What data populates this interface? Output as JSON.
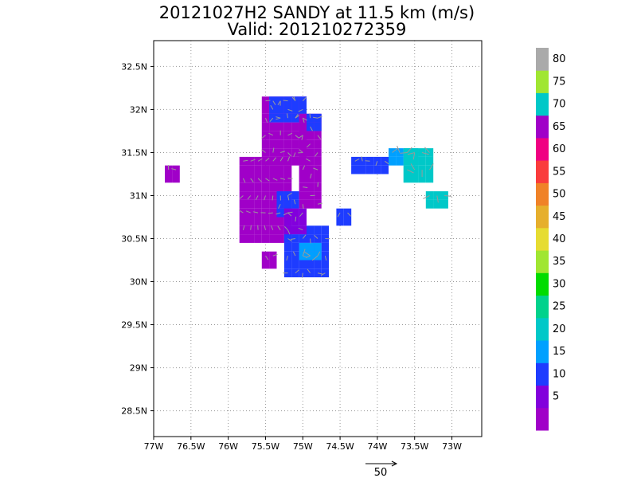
{
  "chart_data": {
    "type": "heatmap",
    "title": "20121027H2 SANDY at 11.5 km (m/s)",
    "subtitle": "Valid: 201210272359",
    "xlim": [
      -77.0,
      -72.6
    ],
    "ylim": [
      28.2,
      32.8
    ],
    "x_ticks": [
      -77,
      -76.5,
      -76,
      -75.5,
      -75,
      -74.5,
      -74,
      -73.5,
      -73
    ],
    "x_tick_labels": [
      "77W",
      "76.5W",
      "76W",
      "75.5W",
      "75W",
      "74.5W",
      "74W",
      "73.5W",
      "73W"
    ],
    "y_ticks": [
      28.5,
      29,
      29.5,
      30,
      30.5,
      31,
      31.5,
      32,
      32.5
    ],
    "y_tick_labels": [
      "28.5N",
      "29N",
      "29.5N",
      "30N",
      "30.5N",
      "31N",
      "31.5N",
      "32N",
      "32.5N"
    ],
    "grid": true,
    "colorbar": {
      "levels": [
        "5",
        "10",
        "15",
        "20",
        "25",
        "30",
        "35",
        "40",
        "45",
        "50",
        "55",
        "60",
        "65",
        "70",
        "75",
        "80"
      ],
      "colors": [
        "#a000c8",
        "#8200dc",
        "#1e3cff",
        "#00a0ff",
        "#00c8c8",
        "#00d28c",
        "#00dc00",
        "#a0e632",
        "#e6dc32",
        "#e6af2d",
        "#f08228",
        "#fa3c3c",
        "#f00082",
        "#a000c8",
        "#00c8c8",
        "#a0e632",
        "#aaaaaa"
      ]
    },
    "reference_vector": {
      "label": "50",
      "value": 50
    },
    "cell_size_deg": 0.1,
    "clusters": [
      {
        "region": "main-west",
        "lon": [
          -75.8,
          -75.2
        ],
        "lat": [
          30.5,
          31.4
        ],
        "level": 0
      },
      {
        "region": "north-arm",
        "lon": [
          -75.5,
          -75.0
        ],
        "lat": [
          31.4,
          32.1
        ],
        "level": 0
      },
      {
        "region": "north-tip",
        "lon": [
          -75.4,
          -75.0
        ],
        "lat": [
          31.9,
          32.1
        ],
        "level": 2
      },
      {
        "region": "east-arm",
        "lon": [
          -75.0,
          -74.8
        ],
        "lat": [
          30.9,
          31.9
        ],
        "level": 0
      },
      {
        "region": "east-top",
        "lon": [
          -74.9,
          -74.8
        ],
        "lat": [
          31.8,
          31.9
        ],
        "level": 2
      },
      {
        "region": "center-band",
        "lon": [
          -75.3,
          -75.1
        ],
        "lat": [
          30.8,
          31.0
        ],
        "level": 2
      },
      {
        "region": "south-core",
        "lon": [
          -75.2,
          -74.7
        ],
        "lat": [
          30.1,
          30.6
        ],
        "level": 2
      },
      {
        "region": "south-mid",
        "lon": [
          -75.0,
          -74.8
        ],
        "lat": [
          30.3,
          30.4
        ],
        "level": 3
      },
      {
        "region": "south-mix",
        "lon": [
          -75.2,
          -75.0
        ],
        "lat": [
          30.6,
          30.8
        ],
        "level": 1
      },
      {
        "region": "south-lobe",
        "lon": [
          -75.5,
          -75.4
        ],
        "lat": [
          30.2,
          30.3
        ],
        "level": 0
      },
      {
        "region": "far-west",
        "lon": [
          -76.8,
          -76.7
        ],
        "lat": [
          31.2,
          31.3
        ],
        "level": 0
      },
      {
        "region": "east-blob",
        "lon": [
          -74.5,
          -74.4
        ],
        "lat": [
          30.7,
          30.8
        ],
        "level": 2
      },
      {
        "region": "ne-band-west",
        "lon": [
          -74.3,
          -73.9
        ],
        "lat": [
          31.3,
          31.4
        ],
        "level": 2
      },
      {
        "region": "ne-band-mid",
        "lon": [
          -73.8,
          -73.5
        ],
        "lat": [
          31.4,
          31.5
        ],
        "level": 3
      },
      {
        "region": "ne-band-east",
        "lon": [
          -73.6,
          -73.3
        ],
        "lat": [
          31.2,
          31.5
        ],
        "level": 4
      },
      {
        "region": "east-isolated",
        "lon": [
          -73.3,
          -73.1
        ],
        "lat": [
          30.9,
          31.0
        ],
        "level": 4
      }
    ]
  }
}
